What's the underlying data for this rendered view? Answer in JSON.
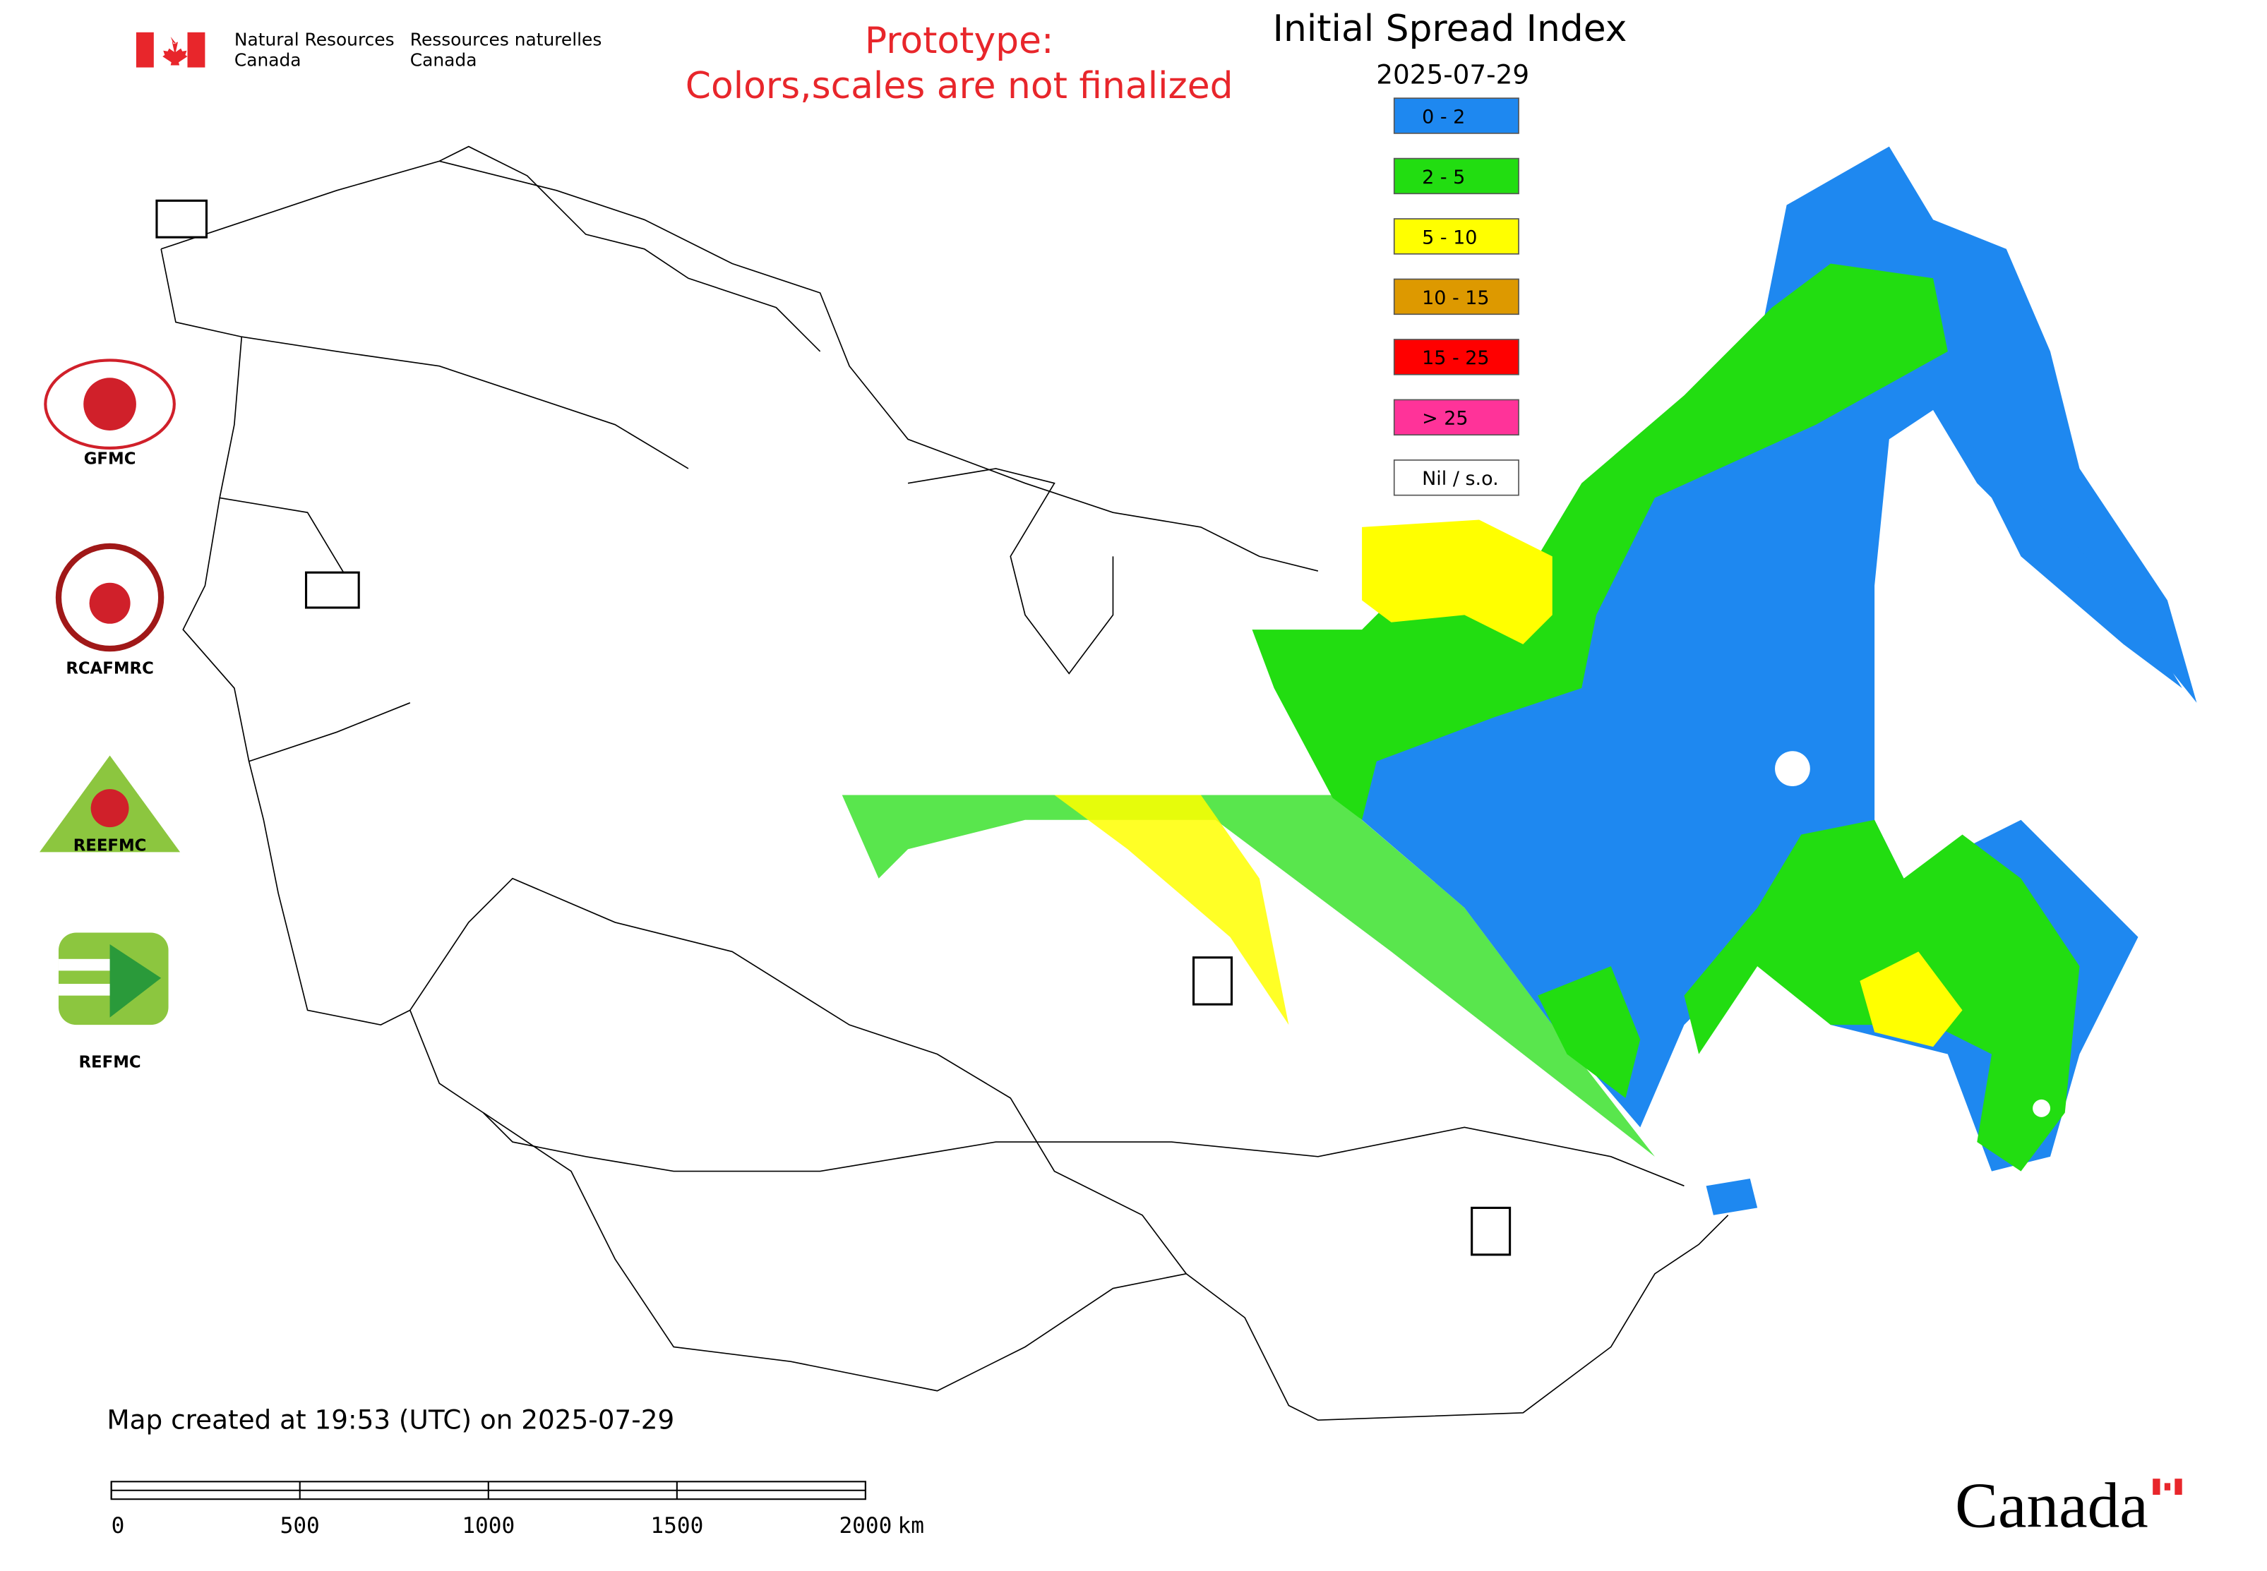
{
  "header": {
    "department_en": [
      "Natural Resources",
      "Canada"
    ],
    "department_fr": [
      "Ressources naturelles",
      "Canada"
    ],
    "prototype_note": [
      "Prototype:",
      "Colors,scales are not finalized"
    ]
  },
  "map": {
    "title": "Initial Spread Index",
    "date": "2025-07-29",
    "legend": [
      {
        "label": "0 - 2",
        "color": "#1e88f0"
      },
      {
        "label": "2 - 5",
        "color": "#22dd11"
      },
      {
        "label": "5 - 10",
        "color": "#ffff00"
      },
      {
        "label": "10 - 15",
        "color": "#dd9900"
      },
      {
        "label": "15 - 25",
        "color": "#ff0000"
      },
      {
        "label": "> 25",
        "color": "#ff3399"
      },
      {
        "label": "Nil / s.o.",
        "color": "#ffffff"
      }
    ],
    "logos": [
      "GFMC",
      "RCAFMRC",
      "REEFMC",
      "REFMC"
    ],
    "created_note": "Map created at 19:53 (UTC) on 2025-07-29",
    "scale_bar": {
      "ticks": [
        0,
        500,
        1000,
        1500,
        2000
      ],
      "unit": "km"
    }
  },
  "footer": {
    "wordmark": "Canada"
  }
}
